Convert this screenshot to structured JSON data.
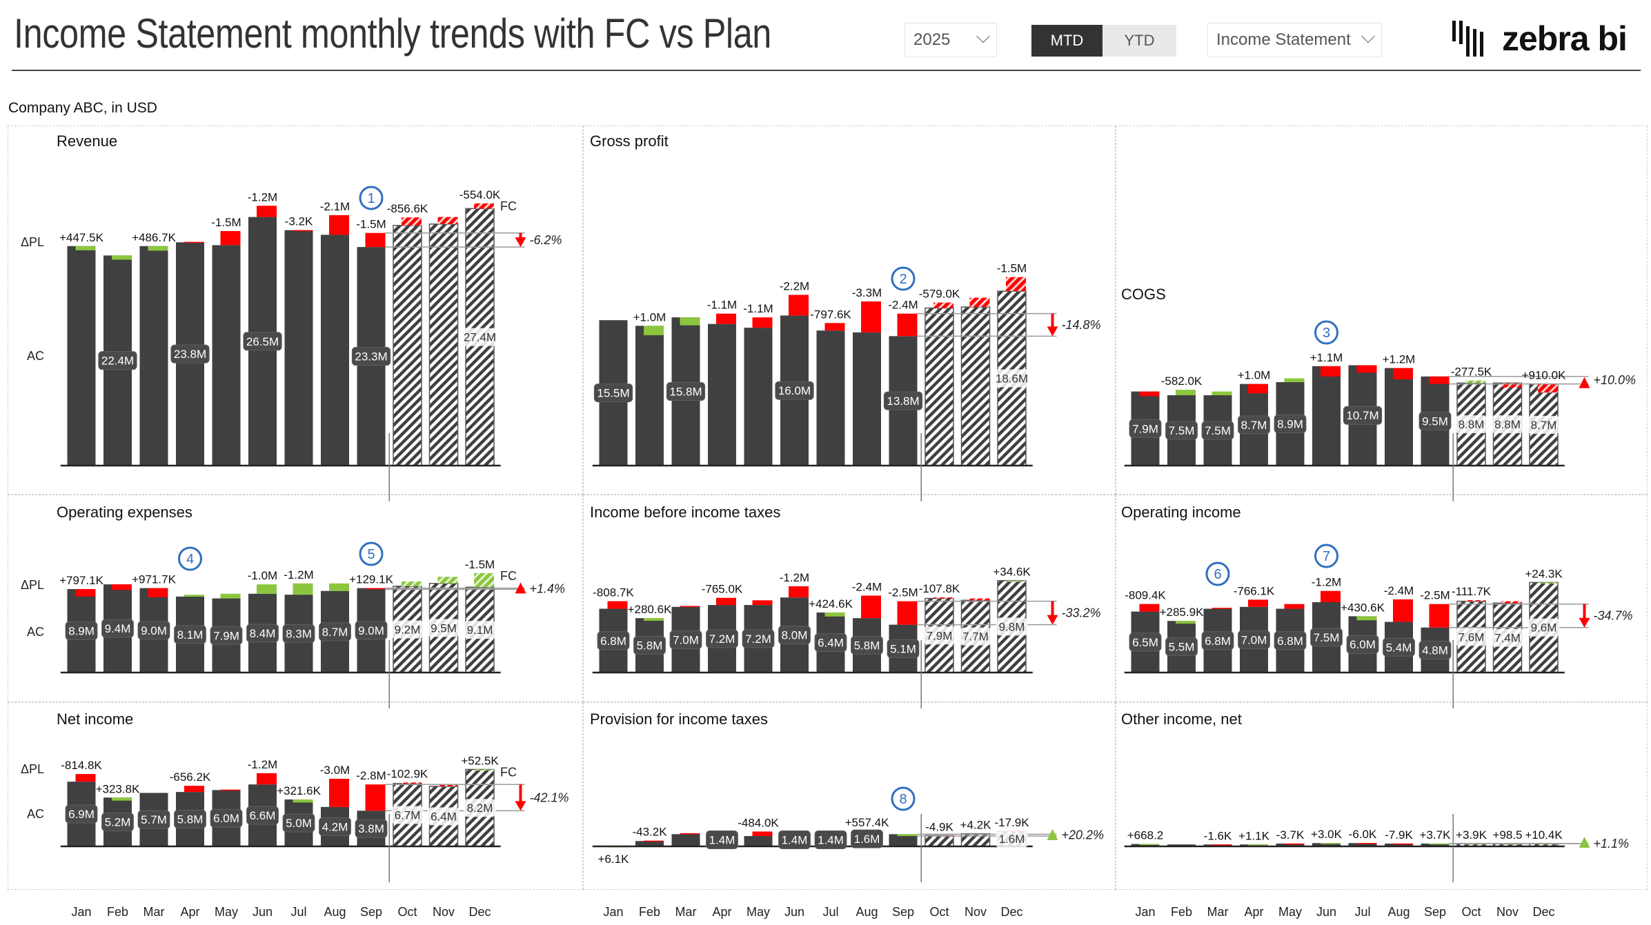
{
  "header": {
    "title": "Income Statement monthly trends with FC vs Plan",
    "subtitle": "Company ABC, in USD",
    "year_dropdown": "2025",
    "toggle": [
      {
        "label": "MTD",
        "active": true
      },
      {
        "label": "YTD",
        "active": false
      }
    ],
    "statement_dropdown": "Income Statement",
    "logo_text": "zebra bi"
  },
  "colors": {
    "actual": "#404040",
    "good": "#8cc63f",
    "bad": "#ff0000",
    "annotation": "#2f6fbf"
  },
  "months": [
    "Jan",
    "Feb",
    "Mar",
    "Apr",
    "May",
    "Jun",
    "Jul",
    "Aug",
    "Sep",
    "Oct",
    "Nov",
    "Dec"
  ],
  "forecast_from": "Oct",
  "axis_labels": {
    "delta": "ΔPL",
    "ac": "AC",
    "fc": "FC"
  },
  "chart_data": [
    {
      "type": "bar",
      "title": "Revenue",
      "unit": "M",
      "inverted": false,
      "show_fc_label": true,
      "show_axis_labels": true,
      "values": [
        23.4,
        22.4,
        23.4,
        23.8,
        23.5,
        26.5,
        25.1,
        24.6,
        23.3,
        25.6,
        25.75,
        27.4
      ],
      "value_labels": [
        null,
        "22.4M",
        null,
        "23.8M",
        null,
        "26.5M",
        null,
        null,
        "23.3M",
        null,
        null,
        "27.4M"
      ],
      "delta_pl": [
        0.4475,
        0.45,
        0.4867,
        -0.05,
        -1.5,
        -1.2,
        -0.0032,
        -2.1,
        -1.5,
        -0.8566,
        -0.75,
        -0.554
      ],
      "delta_labels": [
        "+447.5K",
        null,
        "+486.7K",
        null,
        "-1.5M",
        "-1.2M",
        "-3.2K",
        "-2.1M",
        "-1.5M",
        "-856.6K",
        null,
        "-554.0K"
      ],
      "total_variance": "-6.2%",
      "total_variance_good": false,
      "annotations": [
        {
          "number": "1",
          "month": "Sep"
        }
      ]
    },
    {
      "type": "bar",
      "title": "Gross profit",
      "unit": "M",
      "inverted": false,
      "values": [
        15.5,
        14.9,
        15.8,
        15.1,
        14.7,
        16.0,
        14.4,
        14.2,
        13.8,
        16.8,
        16.9,
        18.6
      ],
      "value_labels": [
        "15.5M",
        null,
        "15.8M",
        null,
        null,
        "16.0M",
        null,
        null,
        "13.8M",
        null,
        null,
        "18.6M"
      ],
      "delta_pl": [
        0,
        1.0,
        0.85,
        -1.1,
        -1.1,
        -2.2,
        -0.7976,
        -3.3,
        -2.4,
        -0.579,
        -1.0,
        -1.5
      ],
      "delta_labels": [
        null,
        "+1.0M",
        null,
        "-1.1M",
        "-1.1M",
        "-2.2M",
        "-797.6K",
        "-3.3M",
        "-2.4M",
        "-579.0K",
        null,
        "-1.5M"
      ],
      "total_variance": "-14.8%",
      "total_variance_good": false,
      "annotations": [
        {
          "number": "2",
          "month": "Sep"
        }
      ]
    },
    {
      "type": "bar",
      "title": "COGS",
      "unit": "M",
      "inverted": true,
      "values": [
        7.9,
        7.5,
        7.5,
        8.7,
        8.9,
        10.6,
        10.7,
        10.4,
        9.5,
        8.8,
        8.8,
        8.7
      ],
      "value_labels": [
        "7.9M",
        "7.5M",
        "7.5M",
        "8.7M",
        "8.9M",
        null,
        "10.7M",
        null,
        "9.5M",
        "8.8M",
        "8.8M",
        "8.7M"
      ],
      "delta_pl": [
        0.5,
        -0.582,
        -0.4,
        1.0,
        -0.4,
        1.1,
        0.8,
        1.2,
        0.8,
        -0.2775,
        0.5,
        0.91
      ],
      "delta_labels": [
        null,
        "-582.0K",
        null,
        "+1.0M",
        null,
        "+1.1M",
        null,
        "+1.2M",
        null,
        "-277.5K",
        null,
        "+910.0K"
      ],
      "total_variance": "+10.0%",
      "total_variance_good": false,
      "annotations": [
        {
          "number": "3",
          "month": "Jun"
        }
      ]
    },
    {
      "type": "bar",
      "title": "Operating expenses",
      "unit": "M",
      "inverted": true,
      "show_fc_label": true,
      "show_axis_labels": true,
      "values": [
        8.9,
        9.4,
        9.0,
        8.1,
        7.9,
        8.4,
        8.3,
        8.7,
        9.0,
        9.2,
        9.5,
        9.1
      ],
      "value_labels": [
        "8.9M",
        "9.4M",
        "9.0M",
        "8.1M",
        "7.9M",
        "8.4M",
        "8.3M",
        "8.7M",
        "9.0M",
        "9.2M",
        "9.5M",
        "9.1M"
      ],
      "delta_pl": [
        0.7971,
        0.6,
        0.9717,
        -0.2,
        -0.5,
        -1.0,
        -1.2,
        -0.8,
        0.1291,
        -0.5,
        -0.7,
        -1.5
      ],
      "delta_labels": [
        "+797.1K",
        null,
        "+971.7K",
        null,
        null,
        "-1.0M",
        "-1.2M",
        null,
        "+129.1K",
        null,
        null,
        "-1.5M"
      ],
      "total_variance": "+1.4%",
      "total_variance_good": false,
      "annotations": [
        {
          "number": "4",
          "month": "Apr"
        },
        {
          "number": "5",
          "month": "Sep"
        }
      ]
    },
    {
      "type": "bar",
      "title": "Income before income taxes",
      "unit": "M",
      "inverted": false,
      "values": [
        6.8,
        5.8,
        7.0,
        7.2,
        7.2,
        8.0,
        6.4,
        5.8,
        5.1,
        7.9,
        7.7,
        9.8
      ],
      "value_labels": [
        "6.8M",
        "5.8M",
        "7.0M",
        "7.2M",
        "7.2M",
        "8.0M",
        "6.4M",
        "5.8M",
        "5.1M",
        "7.9M",
        "7.7M",
        "9.8M"
      ],
      "delta_pl": [
        -0.8087,
        0.2806,
        -0.1,
        -0.765,
        -0.5,
        -1.2,
        0.4246,
        -2.4,
        -2.5,
        -0.1078,
        -0.2,
        0.0346
      ],
      "delta_labels": [
        "-808.7K",
        "+280.6K",
        null,
        "-765.0K",
        null,
        "-1.2M",
        "+424.6K",
        "-2.4M",
        "-2.5M",
        "-107.8K",
        null,
        "+34.6K"
      ],
      "total_variance": "-33.2%",
      "total_variance_good": false,
      "annotations": []
    },
    {
      "type": "bar",
      "title": "Operating income",
      "unit": "M",
      "inverted": false,
      "values": [
        6.5,
        5.5,
        6.8,
        7.0,
        6.8,
        7.5,
        6.0,
        5.4,
        4.8,
        7.6,
        7.4,
        9.6
      ],
      "value_labels": [
        "6.5M",
        "5.5M",
        "6.8M",
        "7.0M",
        "6.8M",
        "7.5M",
        "6.0M",
        "5.4M",
        "4.8M",
        "7.6M",
        "7.4M",
        "9.6M"
      ],
      "delta_pl": [
        -0.8094,
        0.2859,
        -0.1,
        -0.7661,
        -0.5,
        -1.2,
        0.4306,
        -2.4,
        -2.5,
        -0.1117,
        -0.2,
        0.0243
      ],
      "delta_labels": [
        "-809.4K",
        "+285.9K",
        null,
        "-766.1K",
        null,
        "-1.2M",
        "+430.6K",
        "-2.4M",
        "-2.5M",
        "-111.7K",
        null,
        "+24.3K"
      ],
      "total_variance": "-34.7%",
      "total_variance_good": false,
      "annotations": [
        {
          "number": "6",
          "month": "Mar"
        },
        {
          "number": "7",
          "month": "Jun"
        }
      ]
    },
    {
      "type": "bar",
      "title": "Net income",
      "unit": "M",
      "inverted": false,
      "show_fc_label": true,
      "show_axis_labels": true,
      "values": [
        6.9,
        5.2,
        5.7,
        5.8,
        6.0,
        6.6,
        5.0,
        4.2,
        3.8,
        6.7,
        6.4,
        8.2
      ],
      "value_labels": [
        "6.9M",
        "5.2M",
        "5.7M",
        "5.8M",
        "6.0M",
        "6.6M",
        "5.0M",
        "4.2M",
        "3.8M",
        "6.7M",
        "6.4M",
        "8.2M"
      ],
      "delta_pl": [
        -0.8148,
        0.3238,
        0,
        -0.6562,
        -0.05,
        -1.2,
        0.3216,
        -3.0,
        -2.8,
        -0.1029,
        -0.15,
        0.0525
      ],
      "delta_labels": [
        "-814.8K",
        "+323.8K",
        null,
        "-656.2K",
        null,
        "-1.2M",
        "+321.6K",
        "-3.0M",
        "-2.8M",
        "-102.9K",
        null,
        "+52.5K"
      ],
      "total_variance": "-42.1%",
      "total_variance_good": false,
      "annotations": []
    },
    {
      "type": "bar",
      "title": "Provision for income taxes",
      "unit": "M",
      "inverted": false,
      "values": [
        0.01,
        0.57,
        1.3,
        1.4,
        1.1,
        1.4,
        1.4,
        1.6,
        1.3,
        1.15,
        1.35,
        1.6
      ],
      "value_labels": [
        null,
        null,
        null,
        "1.4M",
        null,
        "1.4M",
        "1.4M",
        "1.6M",
        null,
        null,
        null,
        "1.6M"
      ],
      "delta_pl": [
        0.0061,
        -0.0432,
        -0.1,
        -0.05,
        -0.484,
        0,
        0,
        0.5574,
        0.2,
        -0.0049,
        0.0042,
        -0.0179
      ],
      "delta_labels": [
        "+6.1K",
        "-43.2K",
        null,
        null,
        "-484.0K",
        null,
        null,
        "+557.4K",
        null,
        "-4.9K",
        "+4.2K",
        "-17.9K"
      ],
      "total_variance": "+20.2%",
      "total_variance_good": true,
      "annotations": [
        {
          "number": "8",
          "month": "Sep"
        }
      ]
    },
    {
      "type": "bar",
      "title": "Other income, net",
      "unit": "M",
      "inverted": false,
      "values": [
        0.25,
        0.2,
        0.2,
        0.2,
        0.3,
        0.35,
        0.35,
        0.3,
        0.3,
        0.3,
        0.3,
        0.3
      ],
      "value_labels": [
        null,
        null,
        null,
        null,
        null,
        null,
        null,
        null,
        null,
        null,
        null,
        null
      ],
      "delta_pl": [
        0.0007,
        0,
        -0.0016,
        0.0011,
        -0.0037,
        0.003,
        -0.006,
        -0.0079,
        0.0037,
        0.0039,
        0.0001,
        0.0104
      ],
      "delta_labels": [
        "+668.2",
        null,
        "-1.6K",
        "+1.1K",
        "-3.7K",
        "+3.0K",
        "-6.0K",
        "-7.9K",
        "+3.7K",
        "+3.9K",
        "+98.5",
        "+10.4K"
      ],
      "total_variance": "+1.1%",
      "total_variance_good": true,
      "annotations": []
    }
  ]
}
